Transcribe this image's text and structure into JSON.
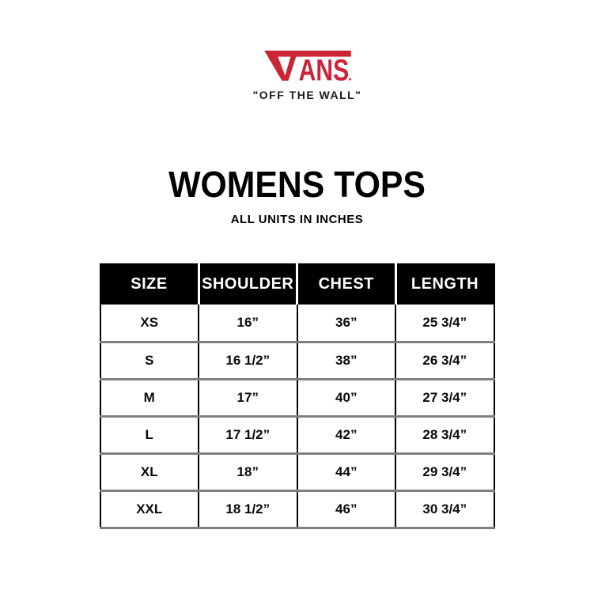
{
  "brand": {
    "logo_text": "VANS",
    "logo_letters": "ANS",
    "registered_mark": "®",
    "tagline": "\"OFF THE WALL\"",
    "logo_color": "#CC2336"
  },
  "heading": {
    "title": "WOMENS TOPS",
    "subtitle": "ALL UNITS IN INCHES"
  },
  "size_chart": {
    "columns": [
      "SIZE",
      "SHOULDER",
      "CHEST",
      "LENGTH"
    ],
    "rows": [
      [
        "XS",
        "16”",
        "36”",
        "25 3/4”"
      ],
      [
        "S",
        "16 1/2”",
        "38”",
        "26 3/4”"
      ],
      [
        "M",
        "17”",
        "40”",
        "27 3/4”"
      ],
      [
        "L",
        "17 1/2”",
        "42”",
        "28 3/4”"
      ],
      [
        "XL",
        "18”",
        "44”",
        "29 3/4”"
      ],
      [
        "XXL",
        "18 1/2”",
        "46”",
        "30 3/4”"
      ]
    ]
  },
  "colors": {
    "background": "#FFFFFF",
    "brand_red": "#CC2336",
    "header_background": "#000000",
    "header_text": "#FFFFFF",
    "row_divider": "#7F7F7F",
    "column_divider": "#000000",
    "body_text": "#000000"
  }
}
